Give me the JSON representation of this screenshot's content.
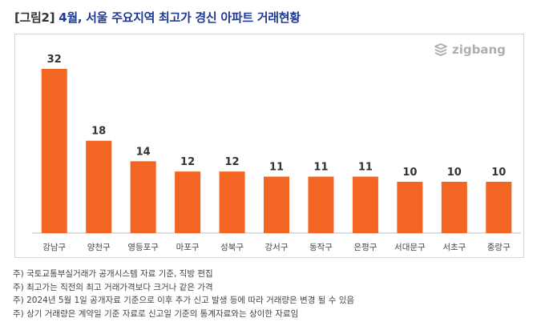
{
  "title": {
    "prefix": "[그림2]",
    "main": "4월, 서울 주요지역 최고가 경신 아파트 거래현황"
  },
  "logo": {
    "text": "zigbang",
    "icon": "zigbang-logo-icon"
  },
  "colors": {
    "bar": "#f26522",
    "axis": "#bfbfbf",
    "title": "#1f3a93"
  },
  "chart_data": {
    "type": "bar",
    "categories": [
      "강남구",
      "양천구",
      "영등포구",
      "마포구",
      "성북구",
      "강서구",
      "동작구",
      "은평구",
      "서대문구",
      "서초구",
      "중랑구"
    ],
    "values": [
      32,
      18,
      14,
      12,
      12,
      11,
      11,
      11,
      10,
      10,
      10
    ],
    "xlabel": "",
    "ylabel": "",
    "ylim": [
      0,
      32
    ],
    "grid": false
  },
  "notes": [
    "주) 국토교통부실거래가 공개시스템 자료 기준, 직방 편집",
    "주) 최고가는 직전의 최고 거래가격보다 크거나 같은 가격",
    "주) 2024년 5월 1일 공개자료 기준으로 이후 추가 신고 발생 등에 따라 거래량은 변경 될 수 있음",
    "주) 상기 거래량은 계약일 기준 자료로 신고일 기준의  통계자료와는 상이한 자료임"
  ]
}
